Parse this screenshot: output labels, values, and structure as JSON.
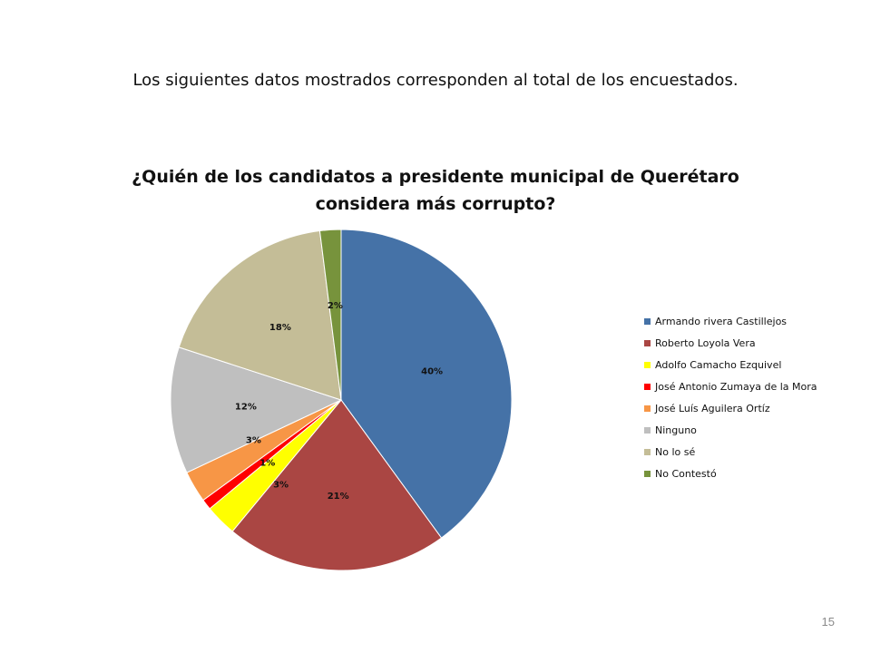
{
  "slide": {
    "subtitle": "Los siguientes datos mostrados corresponden  al total de los encuestados.",
    "page_number": "15"
  },
  "chart_data": {
    "type": "pie",
    "title_line1": "¿Quién de los candidatos a presidente municipal de Querétaro",
    "title_line2": "considera más corrupto?",
    "start_angle_deg": 0,
    "direction": "clockwise",
    "legend_position": "right",
    "slices": [
      {
        "name": "Armando rivera Castillejos",
        "value": 40,
        "label": "40%",
        "color": "#4572A7"
      },
      {
        "name": "Roberto Loyola Vera",
        "value": 21,
        "label": "21%",
        "color": "#AA4643"
      },
      {
        "name": "Adolfo Camacho Ezquivel",
        "value": 3,
        "label": "3%",
        "color": "#FFFF00"
      },
      {
        "name": "José Antonio Zumaya de la Mora",
        "value": 1,
        "label": "1%",
        "color": "#FF0000"
      },
      {
        "name": "José Luís Aguilera Ortíz",
        "value": 3,
        "label": "3%",
        "color": "#F79646"
      },
      {
        "name": "Ninguno",
        "value": 12,
        "label": "12%",
        "color": "#BFBFBF"
      },
      {
        "name": "No lo sé",
        "value": 18,
        "label": "18%",
        "color": "#C4BD97"
      },
      {
        "name": "No Contestó",
        "value": 2,
        "label": "2%",
        "color": "#77933C"
      }
    ]
  }
}
